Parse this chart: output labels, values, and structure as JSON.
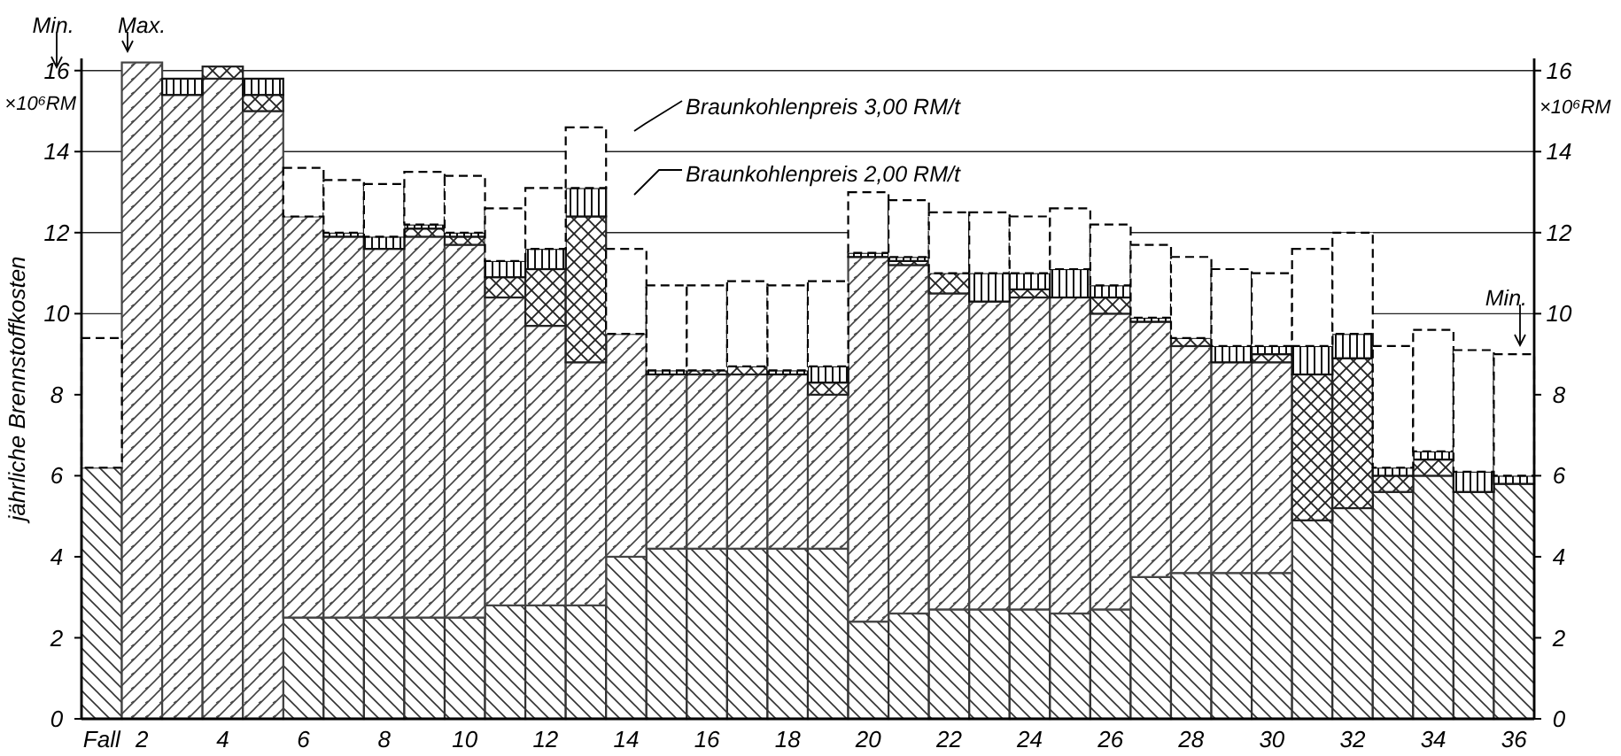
{
  "chart_data": {
    "type": "bar",
    "stacked": true,
    "ylabel": "jährliche Brennstoffkosten",
    "categories": [
      "Fall",
      "2",
      null,
      "4",
      null,
      "6",
      null,
      "8",
      null,
      "10",
      null,
      "12",
      null,
      "14",
      null,
      "16",
      null,
      "18",
      null,
      "20",
      null,
      "22",
      null,
      "24",
      null,
      "26",
      null,
      "28",
      null,
      "30",
      null,
      "32",
      null,
      "34",
      null,
      "36"
    ],
    "series": [
      {
        "color": "#333333",
        "values": [
          6.2,
          null,
          null,
          null,
          null,
          2.5,
          2.5,
          2.5,
          2.5,
          2.5,
          2.8,
          2.8,
          2.8,
          4.0,
          4.2,
          4.2,
          4.2,
          4.2,
          4.2,
          2.4,
          2.6,
          2.7,
          2.7,
          2.7,
          2.6,
          2.7,
          3.5,
          3.6,
          3.6,
          3.6,
          4.9,
          5.2,
          5.6,
          6.0,
          5.6,
          5.8
        ]
      },
      {
        "color": "#444444",
        "values": [
          null,
          16.2,
          15.4,
          15.8,
          15.0,
          9.9,
          9.4,
          9.1,
          9.4,
          9.2,
          7.6,
          6.9,
          6.0,
          5.5,
          4.3,
          4.3,
          4.3,
          4.3,
          3.8,
          9.0,
          8.6,
          7.8,
          7.6,
          7.7,
          7.8,
          7.3,
          6.3,
          5.6,
          5.2,
          5.2,
          null,
          null,
          null,
          null,
          null,
          null
        ]
      },
      {
        "color": "#222222",
        "values": [
          null,
          null,
          null,
          0.3,
          0.4,
          null,
          null,
          null,
          0.2,
          0.2,
          0.5,
          1.4,
          3.6,
          null,
          null,
          0.1,
          0.2,
          null,
          0.3,
          null,
          0.1,
          0.5,
          null,
          0.2,
          null,
          0.4,
          null,
          0.2,
          null,
          0.2,
          3.6,
          3.7,
          0.4,
          0.4,
          null,
          null
        ]
      },
      {
        "color": "#111111",
        "values": [
          null,
          null,
          0.4,
          null,
          0.4,
          null,
          0.1,
          0.3,
          0.1,
          0.1,
          0.4,
          0.5,
          0.7,
          null,
          0.1,
          null,
          null,
          0.1,
          0.4,
          0.1,
          0.1,
          null,
          0.7,
          0.4,
          0.7,
          0.3,
          0.1,
          null,
          0.4,
          0.2,
          0.7,
          0.6,
          0.2,
          0.2,
          0.5,
          0.2
        ]
      },
      {
        "color": "#000000",
        "line_style": "dashed",
        "values": [
          3.2,
          null,
          null,
          null,
          null,
          1.2,
          1.3,
          1.3,
          1.3,
          1.4,
          1.3,
          1.5,
          1.5,
          2.1,
          2.1,
          2.1,
          2.1,
          2.1,
          2.1,
          1.5,
          1.4,
          1.5,
          1.5,
          1.4,
          1.5,
          1.5,
          1.8,
          2.0,
          1.9,
          1.8,
          2.4,
          2.5,
          3.0,
          3.0,
          3.0,
          3.0
        ]
      }
    ],
    "ylim": [
      0,
      16.3
    ],
    "yticks": [
      0,
      2,
      4,
      6,
      8,
      10,
      12,
      14,
      16
    ],
    "y2lim": [
      0,
      16.3
    ],
    "y2ticks": [
      0,
      2,
      4,
      6,
      8,
      10,
      12,
      14,
      16
    ],
    "grid": "y",
    "annotations": [
      "Min.",
      "Max.",
      "Braunkohlenpreis 3,00 RM/t",
      "Braunkohlenpreis 2,00 RM/t",
      "×10⁶RM",
      "×10⁶RM",
      "Min."
    ]
  }
}
